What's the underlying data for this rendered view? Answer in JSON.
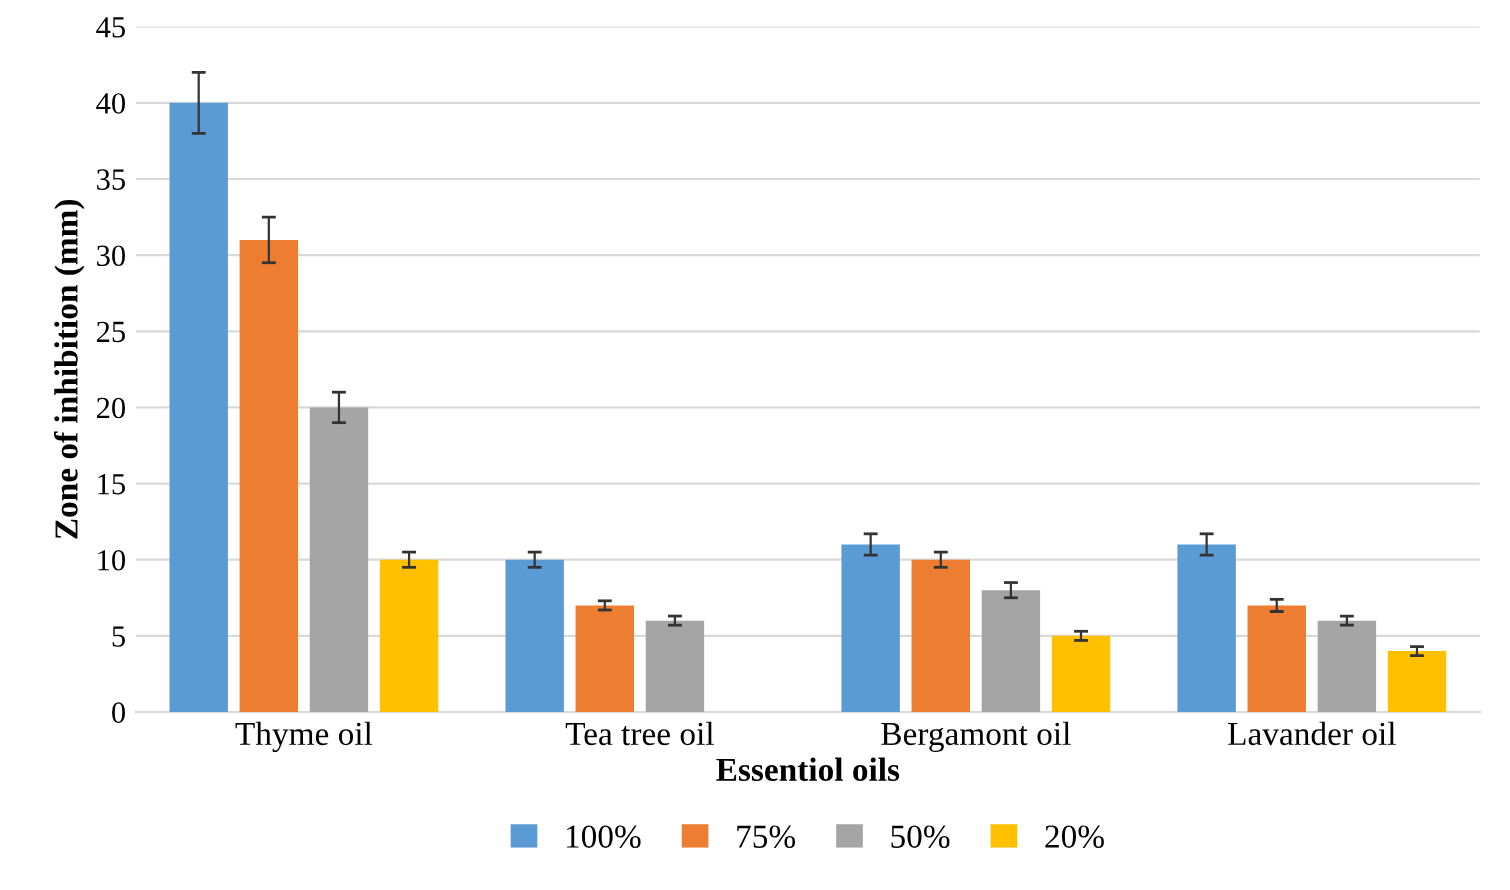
{
  "chart_data": {
    "type": "bar",
    "xlabel": "Essentiol oils",
    "ylabel": "Zone of inhibition (mm)",
    "categories": [
      "Thyme oil",
      "Tea tree oil",
      "Bergamont oil",
      "Lavander oil"
    ],
    "series": [
      {
        "name": "100%",
        "color": "#5b9bd5",
        "values": [
          40,
          10,
          11,
          11
        ],
        "errors": [
          2,
          0.5,
          0.7,
          0.7
        ]
      },
      {
        "name": "75%",
        "color": "#ed7d31",
        "values": [
          31,
          7,
          10,
          7
        ],
        "errors": [
          1.5,
          0.3,
          0.5,
          0.4
        ]
      },
      {
        "name": "50%",
        "color": "#a5a5a5",
        "values": [
          20,
          6,
          8,
          6
        ],
        "errors": [
          1,
          0.3,
          0.5,
          0.3
        ]
      },
      {
        "name": "20%",
        "color": "#ffc000",
        "values": [
          10,
          null,
          5,
          4
        ],
        "errors": [
          0.5,
          null,
          0.3,
          0.3
        ]
      }
    ],
    "ylim": [
      0,
      45
    ],
    "yticks": [
      0,
      5,
      10,
      15,
      20,
      25,
      30,
      35,
      40,
      45
    ],
    "grid": "y",
    "legend": "bottom"
  }
}
